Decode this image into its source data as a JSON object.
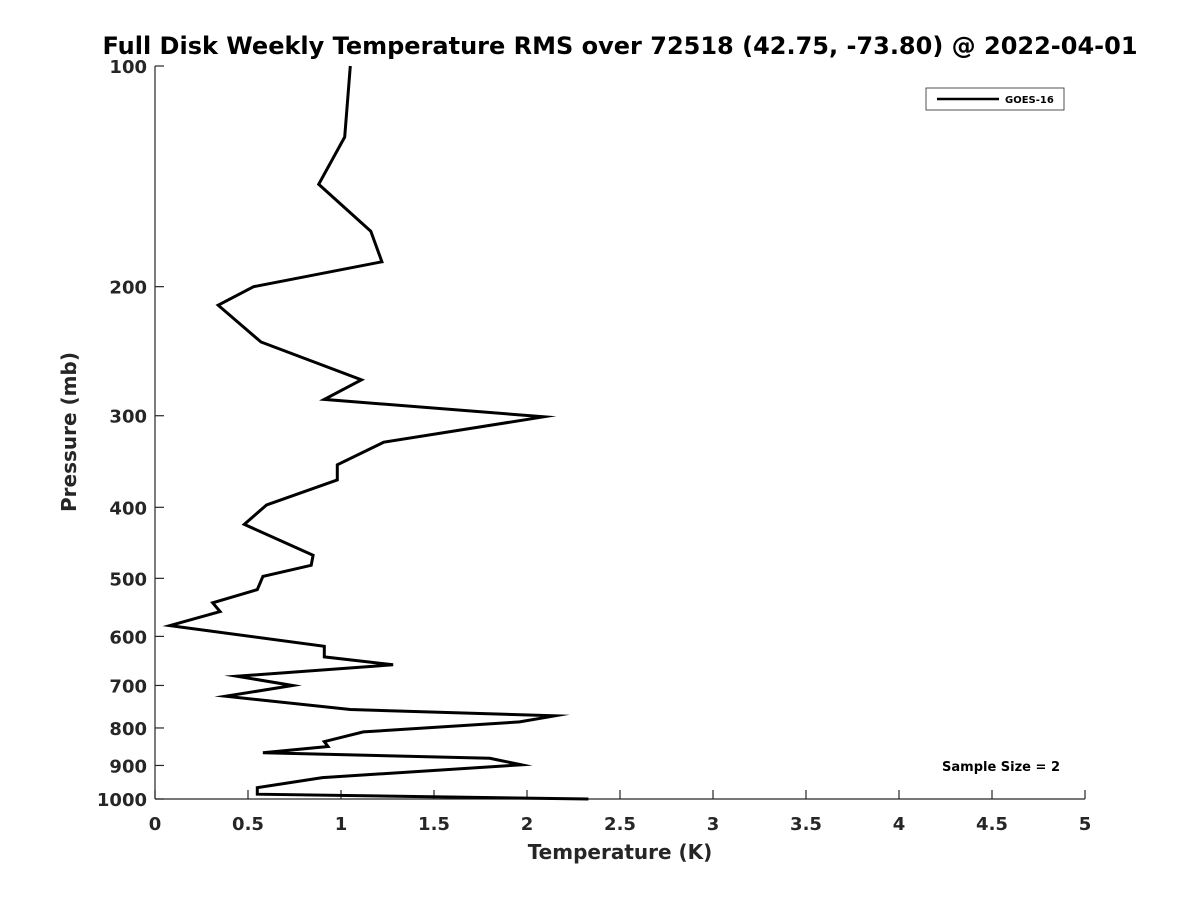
{
  "chart_data": {
    "type": "line",
    "title": "Full Disk Weekly Temperature RMS over 72518 (42.75, -73.80) @ 2022-04-01",
    "xlabel": "Temperature (K)",
    "ylabel": "Pressure (mb)",
    "xlim": [
      0,
      5
    ],
    "ylim": [
      100,
      1000
    ],
    "y_scale": "log",
    "y_reversed": true,
    "x_ticks": [
      "0",
      "0.5",
      "1",
      "1.5",
      "2",
      "2.5",
      "3",
      "3.5",
      "4",
      "4.5",
      "5"
    ],
    "y_ticks": [
      "100",
      "200",
      "300",
      "400",
      "500",
      "600",
      "700",
      "800",
      "900",
      "1000"
    ],
    "grid": false,
    "legend_position": "top-right",
    "annotation": "Sample Size = 2",
    "series": [
      {
        "name": "GOES-16",
        "color": "#000000",
        "points": [
          [
            1.05,
            100
          ],
          [
            1.02,
            125
          ],
          [
            0.88,
            145
          ],
          [
            1.16,
            168
          ],
          [
            1.22,
            185
          ],
          [
            0.53,
            200
          ],
          [
            0.34,
            212
          ],
          [
            0.57,
            238
          ],
          [
            1.11,
            268
          ],
          [
            0.91,
            285
          ],
          [
            2.09,
            301
          ],
          [
            1.23,
            326
          ],
          [
            0.98,
            350
          ],
          [
            0.98,
            367
          ],
          [
            0.6,
            397
          ],
          [
            0.48,
            422
          ],
          [
            0.85,
            465
          ],
          [
            0.84,
            480
          ],
          [
            0.58,
            497
          ],
          [
            0.55,
            518
          ],
          [
            0.31,
            540
          ],
          [
            0.35,
            555
          ],
          [
            0.08,
            580
          ],
          [
            0.91,
            619
          ],
          [
            0.91,
            640
          ],
          [
            1.28,
            656
          ],
          [
            0.44,
            680
          ],
          [
            0.74,
            700
          ],
          [
            0.38,
            724
          ],
          [
            1.05,
            755
          ],
          [
            2.15,
            770
          ],
          [
            1.96,
            785
          ],
          [
            1.12,
            810
          ],
          [
            0.91,
            835
          ],
          [
            0.93,
            848
          ],
          [
            0.58,
            865
          ],
          [
            1.8,
            880
          ],
          [
            1.97,
            898
          ],
          [
            0.9,
            935
          ],
          [
            0.55,
            965
          ],
          [
            0.55,
            985
          ],
          [
            2.33,
            1000
          ]
        ]
      }
    ]
  }
}
